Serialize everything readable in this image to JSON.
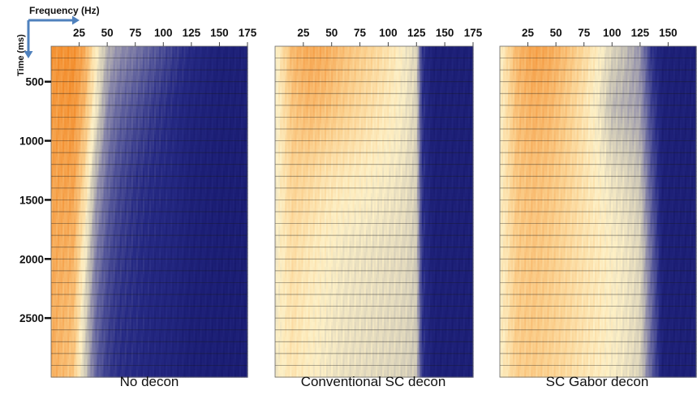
{
  "figure": {
    "x_axis_label": "Frequency (Hz)",
    "y_axis_label": "Time (ms)",
    "arrow_color": "#4f81bd"
  },
  "chart_data": [
    {
      "type": "heatmap",
      "title": "No decon",
      "xlabel": "Frequency (Hz)",
      "ylabel": "Time (ms)",
      "x_ticks": [
        25,
        50,
        75,
        100,
        125,
        150,
        175
      ],
      "y_ticks": [
        500,
        1000,
        1500,
        2000,
        2500
      ],
      "xlim": [
        0,
        175
      ],
      "ylim": [
        200,
        3000
      ],
      "grid": true,
      "colorscale": [
        "#f07a10",
        "#f6a550",
        "#fbd08e",
        "#fdf0c6",
        "#c8c3b5",
        "#8a88aa",
        "#55579a",
        "#262a84",
        "#17196e"
      ],
      "profile_hz": [
        0,
        20,
        30,
        40,
        50,
        60,
        75,
        90,
        110,
        125,
        150,
        175
      ],
      "profile_times_ms": [
        200,
        700,
        1300,
        1900,
        2500,
        3000
      ],
      "amplitude_profiles": [
        [
          0.92,
          0.93,
          0.86,
          0.64,
          0.47,
          0.4,
          0.34,
          0.27,
          0.18,
          0.12,
          0.06,
          0.06
        ],
        [
          0.9,
          0.92,
          0.82,
          0.6,
          0.38,
          0.3,
          0.24,
          0.18,
          0.12,
          0.08,
          0.05,
          0.05
        ],
        [
          0.88,
          0.88,
          0.72,
          0.45,
          0.3,
          0.22,
          0.16,
          0.13,
          0.1,
          0.06,
          0.04,
          0.04
        ],
        [
          0.86,
          0.84,
          0.62,
          0.36,
          0.24,
          0.18,
          0.14,
          0.11,
          0.09,
          0.06,
          0.04,
          0.04
        ],
        [
          0.85,
          0.8,
          0.55,
          0.3,
          0.2,
          0.15,
          0.13,
          0.1,
          0.08,
          0.05,
          0.04,
          0.04
        ],
        [
          0.85,
          0.78,
          0.52,
          0.28,
          0.18,
          0.14,
          0.12,
          0.1,
          0.08,
          0.05,
          0.04,
          0.04
        ]
      ]
    },
    {
      "type": "heatmap",
      "title": "Conventional SC decon",
      "xlabel": "Frequency (Hz)",
      "ylabel": "Time (ms)",
      "x_ticks": [
        25,
        50,
        75,
        100,
        125,
        150,
        175
      ],
      "y_ticks": [
        500,
        1000,
        1500,
        2000,
        2500
      ],
      "xlim": [
        0,
        175
      ],
      "ylim": [
        200,
        3000
      ],
      "grid": true,
      "colorscale": [
        "#f07a10",
        "#f6a550",
        "#fbd08e",
        "#fdf0c6",
        "#c8c3b5",
        "#8a88aa",
        "#55579a",
        "#262a84",
        "#17196e"
      ],
      "profile_hz": [
        0,
        15,
        30,
        45,
        60,
        75,
        90,
        105,
        115,
        125,
        130,
        140,
        160,
        175
      ],
      "profile_times_ms": [
        200,
        700,
        1300,
        1900,
        2500,
        3000
      ],
      "amplitude_profiles": [
        [
          0.6,
          0.82,
          0.86,
          0.85,
          0.8,
          0.76,
          0.72,
          0.66,
          0.6,
          0.55,
          0.15,
          0.05,
          0.05,
          0.05
        ],
        [
          0.6,
          0.78,
          0.82,
          0.8,
          0.76,
          0.72,
          0.68,
          0.64,
          0.6,
          0.54,
          0.15,
          0.05,
          0.05,
          0.05
        ],
        [
          0.6,
          0.74,
          0.72,
          0.68,
          0.66,
          0.64,
          0.62,
          0.6,
          0.58,
          0.53,
          0.15,
          0.05,
          0.05,
          0.05
        ],
        [
          0.6,
          0.7,
          0.66,
          0.63,
          0.6,
          0.59,
          0.58,
          0.57,
          0.56,
          0.52,
          0.15,
          0.05,
          0.05,
          0.05
        ],
        [
          0.6,
          0.68,
          0.64,
          0.61,
          0.59,
          0.58,
          0.57,
          0.56,
          0.55,
          0.52,
          0.15,
          0.05,
          0.05,
          0.05
        ],
        [
          0.6,
          0.67,
          0.63,
          0.6,
          0.58,
          0.57,
          0.56,
          0.55,
          0.54,
          0.51,
          0.15,
          0.05,
          0.05,
          0.05
        ]
      ]
    },
    {
      "type": "heatmap",
      "title": "SC Gabor decon",
      "xlabel": "Frequency (Hz)",
      "ylabel": "Time (ms)",
      "x_ticks": [
        25,
        50,
        75,
        100,
        125,
        150
      ],
      "y_ticks": [
        500,
        1000,
        1500,
        2000,
        2500
      ],
      "xlim": [
        0,
        175
      ],
      "ylim": [
        200,
        3000
      ],
      "grid": true,
      "colorscale": [
        "#f07a10",
        "#f6a550",
        "#fbd08e",
        "#fdf0c6",
        "#c8c3b5",
        "#8a88aa",
        "#55579a",
        "#262a84",
        "#17196e"
      ],
      "profile_hz": [
        0,
        15,
        30,
        45,
        60,
        75,
        90,
        100,
        110,
        125,
        135,
        145,
        160,
        175
      ],
      "profile_times_ms": [
        200,
        700,
        1300,
        1900,
        2500,
        3000
      ],
      "amplitude_profiles": [
        [
          0.62,
          0.82,
          0.88,
          0.86,
          0.8,
          0.72,
          0.62,
          0.55,
          0.5,
          0.4,
          0.15,
          0.06,
          0.05,
          0.05
        ],
        [
          0.62,
          0.8,
          0.84,
          0.82,
          0.76,
          0.68,
          0.58,
          0.48,
          0.46,
          0.42,
          0.2,
          0.06,
          0.05,
          0.05
        ],
        [
          0.62,
          0.78,
          0.8,
          0.78,
          0.74,
          0.68,
          0.62,
          0.58,
          0.56,
          0.5,
          0.25,
          0.06,
          0.05,
          0.05
        ],
        [
          0.62,
          0.76,
          0.78,
          0.76,
          0.72,
          0.68,
          0.65,
          0.62,
          0.6,
          0.55,
          0.3,
          0.06,
          0.05,
          0.05
        ],
        [
          0.62,
          0.76,
          0.77,
          0.75,
          0.72,
          0.68,
          0.65,
          0.62,
          0.6,
          0.55,
          0.3,
          0.06,
          0.05,
          0.05
        ],
        [
          0.62,
          0.75,
          0.76,
          0.74,
          0.71,
          0.67,
          0.64,
          0.61,
          0.59,
          0.54,
          0.28,
          0.06,
          0.05,
          0.05
        ]
      ]
    }
  ]
}
